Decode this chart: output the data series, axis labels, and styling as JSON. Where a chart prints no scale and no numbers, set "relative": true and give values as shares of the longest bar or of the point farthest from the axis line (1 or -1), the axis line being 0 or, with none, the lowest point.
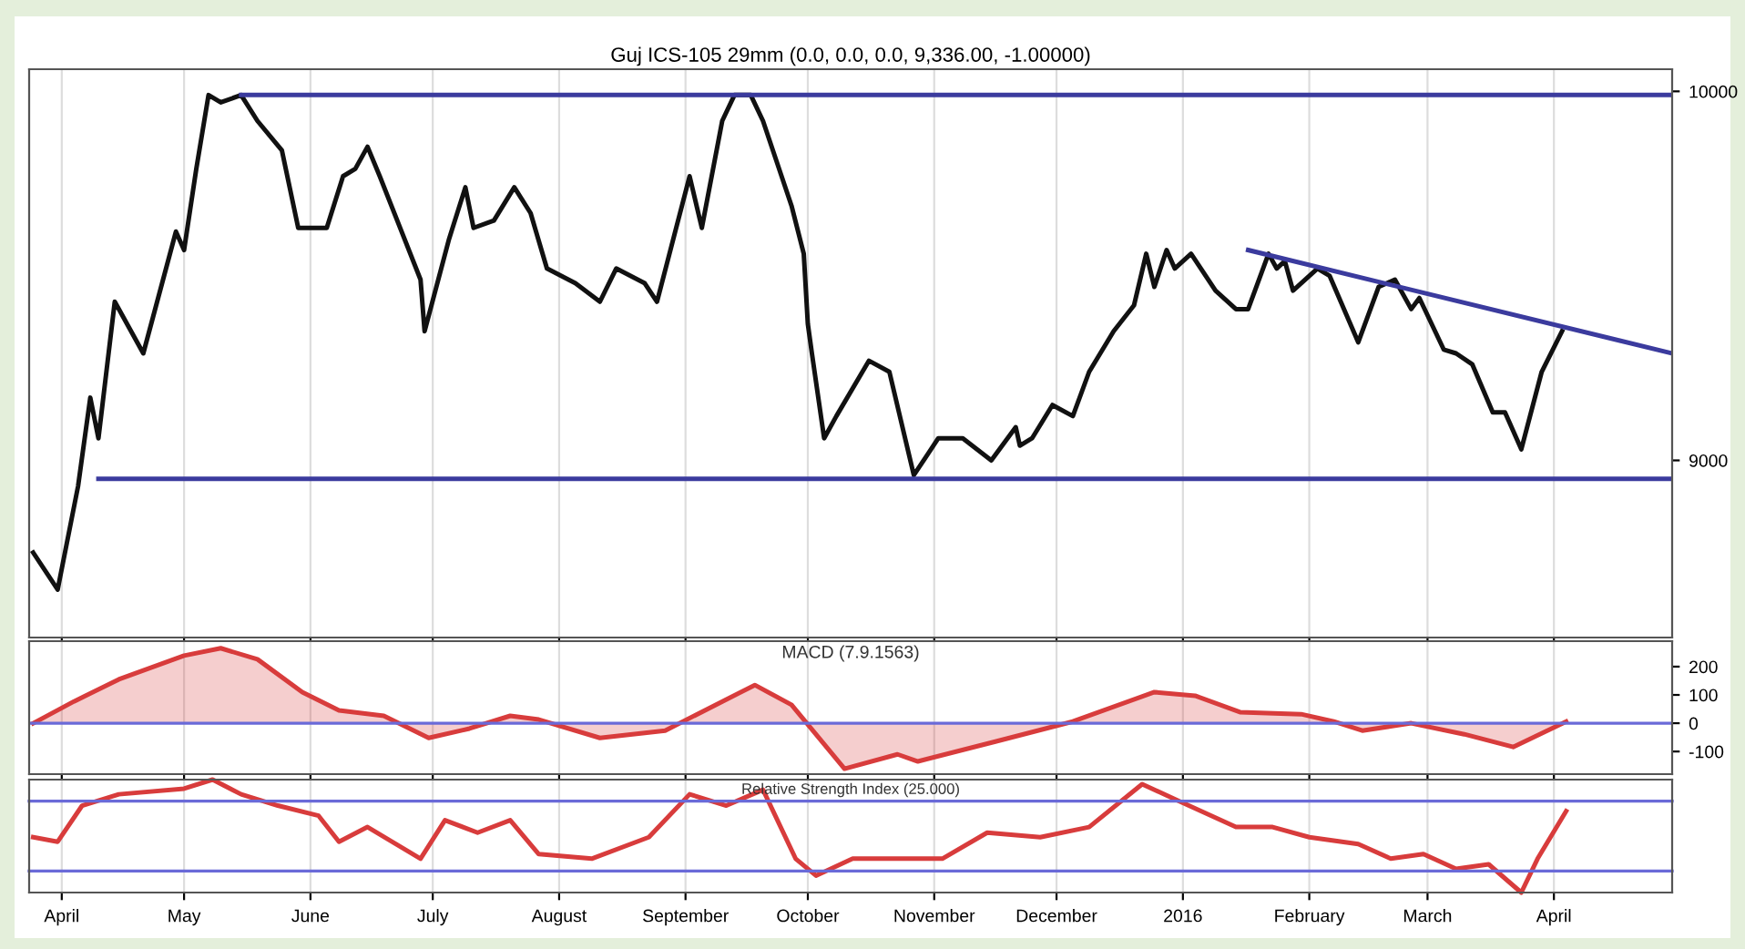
{
  "chart_data": [
    {
      "type": "line",
      "title": "Guj ICS-105 29mm (0.0, 0.0, 0.0, 9,336.00, -1.00000)",
      "tick_labels": "y",
      "grid": "x",
      "xlim": [
        "2015-03-24",
        "2016-04-30"
      ],
      "ylim": [
        8520,
        10060
      ],
      "yticks": [
        9000,
        10000
      ],
      "xticks": [
        {
          "value": "2015-04-01",
          "label": null
        },
        {
          "value": "2015-05-01",
          "label": null
        },
        {
          "value": "2015-06-01",
          "label": null
        },
        {
          "value": "2015-07-01",
          "label": null
        },
        {
          "value": "2015-08-01",
          "label": null
        },
        {
          "value": "2015-09-01",
          "label": null
        },
        {
          "value": "2015-10-01",
          "label": null
        },
        {
          "value": "2015-11-01",
          "label": null
        },
        {
          "value": "2015-12-01",
          "label": null
        },
        {
          "value": "2016-01-01",
          "label": null
        },
        {
          "value": "2016-02-01",
          "label": null
        },
        {
          "value": "2016-03-01",
          "label": null
        },
        {
          "value": "2016-04-01",
          "label": null
        }
      ],
      "series": [
        {
          "color": "#111111",
          "x": [
            "2015-03-25",
            "2015-03-31",
            "2015-04-05",
            "2015-04-08",
            "2015-04-10",
            "2015-04-14",
            "2015-04-21",
            "2015-04-29",
            "2015-05-01",
            "2015-05-04",
            "2015-05-07",
            "2015-05-10",
            "2015-05-15",
            "2015-05-19",
            "2015-05-25",
            "2015-05-29",
            "2015-06-05",
            "2015-06-09",
            "2015-06-12",
            "2015-06-15",
            "2015-06-18",
            "2015-06-28",
            "2015-06-29",
            "2015-07-05",
            "2015-07-09",
            "2015-07-11",
            "2015-07-16",
            "2015-07-21",
            "2015-07-25",
            "2015-07-29",
            "2015-08-05",
            "2015-08-11",
            "2015-08-15",
            "2015-08-22",
            "2015-08-25",
            "2015-09-02",
            "2015-09-05",
            "2015-09-10",
            "2015-09-13",
            "2015-09-17",
            "2015-09-20",
            "2015-09-27",
            "2015-09-30",
            "2015-10-01",
            "2015-10-02",
            "2015-10-05",
            "2015-10-08",
            "2015-10-16",
            "2015-10-21",
            "2015-10-27",
            "2015-11-02",
            "2015-11-08",
            "2015-11-15",
            "2015-11-21",
            "2015-11-22",
            "2015-11-25",
            "2015-11-30",
            "2015-12-05",
            "2015-12-09",
            "2015-12-15",
            "2015-12-20",
            "2015-12-23",
            "2015-12-25",
            "2015-12-28",
            "2015-12-30",
            "2016-01-03",
            "2016-01-09",
            "2016-01-14",
            "2016-01-17",
            "2016-01-22",
            "2016-01-24",
            "2016-01-26",
            "2016-01-28",
            "2016-02-03",
            "2016-02-06",
            "2016-02-13",
            "2016-02-18",
            "2016-02-22",
            "2016-02-26",
            "2016-02-28",
            "2016-03-05",
            "2016-03-08",
            "2016-03-12",
            "2016-03-17",
            "2016-03-20",
            "2016-03-24",
            "2016-03-29",
            "2016-04-03"
          ],
          "values": [
            8750,
            8650,
            8930,
            9170,
            9060,
            9430,
            9290,
            9620,
            9570,
            9790,
            9990,
            9970,
            9990,
            9920,
            9840,
            9630,
            9630,
            9770,
            9790,
            9850,
            9770,
            9490,
            9350,
            9600,
            9740,
            9630,
            9650,
            9740,
            9670,
            9520,
            9480,
            9430,
            9520,
            9480,
            9430,
            9770,
            9630,
            9920,
            9990,
            9990,
            9920,
            9690,
            9560,
            9370,
            9290,
            9060,
            9120,
            9270,
            9240,
            8960,
            9060,
            9060,
            9000,
            9090,
            9040,
            9060,
            9150,
            9120,
            9240,
            9350,
            9420,
            9560,
            9470,
            9570,
            9520,
            9560,
            9460,
            9410,
            9410,
            9560,
            9520,
            9540,
            9460,
            9520,
            9500,
            9320,
            9470,
            9490,
            9410,
            9440,
            9300,
            9290,
            9260,
            9130,
            9130,
            9030,
            9240,
            9350
          ]
        },
        {
          "color": "#3b3b9e",
          "x": [
            "2015-05-15",
            "2016-04-30"
          ],
          "values": [
            9990,
            9990
          ]
        },
        {
          "color": "#3b3b9e",
          "x": [
            "2015-04-10",
            "2016-04-30"
          ],
          "values": [
            8950,
            8950
          ]
        },
        {
          "color": "#3b3b9e",
          "x": [
            "2016-01-17",
            "2016-04-30"
          ],
          "values": [
            9570,
            9290
          ]
        }
      ]
    },
    {
      "type": "area",
      "title": "MACD (7.9.1563)",
      "tick_labels": "y",
      "grid": "x",
      "xlim": [
        "2015-03-24",
        "2016-04-30"
      ],
      "ylim": [
        -180,
        290
      ],
      "yticks": [
        -100,
        0,
        100,
        200
      ],
      "xticks": [
        {
          "value": "2015-04-01",
          "label": null
        },
        {
          "value": "2015-05-01",
          "label": null
        },
        {
          "value": "2015-06-01",
          "label": null
        },
        {
          "value": "2015-07-01",
          "label": null
        },
        {
          "value": "2015-08-01",
          "label": null
        },
        {
          "value": "2015-09-01",
          "label": null
        },
        {
          "value": "2015-10-01",
          "label": null
        },
        {
          "value": "2015-11-01",
          "label": null
        },
        {
          "value": "2015-12-01",
          "label": null
        },
        {
          "value": "2016-01-01",
          "label": null
        },
        {
          "value": "2016-02-01",
          "label": null
        },
        {
          "value": "2016-03-01",
          "label": null
        },
        {
          "value": "2016-04-01",
          "label": null
        }
      ],
      "ref_lines": [
        {
          "axis": "y",
          "value": 0,
          "color": "#6a6ad8"
        }
      ],
      "series": [
        {
          "color": "#d83c3c",
          "x": [
            "2015-03-25",
            "2015-04-04",
            "2015-04-15",
            "2015-05-01",
            "2015-05-10",
            "2015-05-19",
            "2015-05-30",
            "2015-06-08",
            "2015-06-19",
            "2015-06-30",
            "2015-07-10",
            "2015-07-20",
            "2015-07-27",
            "2015-08-11",
            "2015-08-27",
            "2015-09-18",
            "2015-09-27",
            "2015-10-10",
            "2015-10-23",
            "2015-10-28",
            "2015-11-16",
            "2015-12-05",
            "2015-12-25",
            "2016-01-04",
            "2016-01-15",
            "2016-01-30",
            "2016-02-07",
            "2016-02-14",
            "2016-02-26",
            "2016-03-10",
            "2016-03-22",
            "2016-04-04"
          ],
          "values": [
            0,
            77,
            155,
            239,
            265,
            226,
            110,
            45,
            26,
            -52,
            -19,
            26,
            13,
            -52,
            -26,
            135,
            65,
            -161,
            -110,
            -135,
            -65,
            6,
            110,
            97,
            39,
            32,
            6,
            -26,
            0,
            -39,
            -84,
            6
          ]
        }
      ]
    },
    {
      "type": "line",
      "title": "Relative Strength Index (25.000)",
      "relative": true,
      "tick_labels": "x",
      "grid": "x",
      "xlim": [
        "2015-03-24",
        "2016-04-30"
      ],
      "xticks": [
        {
          "value": "2015-04-01",
          "label": "April"
        },
        {
          "value": "2015-05-01",
          "label": "May"
        },
        {
          "value": "2015-06-01",
          "label": "June"
        },
        {
          "value": "2015-07-01",
          "label": "July"
        },
        {
          "value": "2015-08-01",
          "label": "August"
        },
        {
          "value": "2015-09-01",
          "label": "September"
        },
        {
          "value": "2015-10-01",
          "label": "October"
        },
        {
          "value": "2015-11-01",
          "label": "November"
        },
        {
          "value": "2015-12-01",
          "label": "December"
        },
        {
          "value": "2016-01-01",
          "label": "2016"
        },
        {
          "value": "2016-02-01",
          "label": "February"
        },
        {
          "value": "2016-03-01",
          "label": "March"
        },
        {
          "value": "2016-04-01",
          "label": "April"
        }
      ],
      "ref_lines": [
        {
          "axis": "y",
          "value": 0.81,
          "color": "#6a6ad8"
        },
        {
          "axis": "y",
          "value": 0.19,
          "color": "#6a6ad8"
        }
      ],
      "series": [
        {
          "color": "#d83c3c",
          "x": [
            "2015-03-25",
            "2015-03-31",
            "2015-04-06",
            "2015-04-15",
            "2015-05-01",
            "2015-05-08",
            "2015-05-15",
            "2015-05-24",
            "2015-06-03",
            "2015-06-08",
            "2015-06-15",
            "2015-06-28",
            "2015-07-04",
            "2015-07-12",
            "2015-07-20",
            "2015-07-27",
            "2015-08-09",
            "2015-08-23",
            "2015-09-02",
            "2015-09-11",
            "2015-09-20",
            "2015-09-28",
            "2015-10-03",
            "2015-10-12",
            "2015-10-25",
            "2015-11-03",
            "2015-11-14",
            "2015-11-27",
            "2015-12-09",
            "2015-12-22",
            "2015-12-31",
            "2016-01-14",
            "2016-01-23",
            "2016-02-01",
            "2016-02-13",
            "2016-02-21",
            "2016-02-29",
            "2016-03-08",
            "2016-03-16",
            "2016-03-24",
            "2016-03-28",
            "2016-04-04"
          ],
          "values": [
            0.49,
            0.45,
            0.77,
            0.87,
            0.92,
            1,
            0.87,
            0.77,
            0.68,
            0.45,
            0.58,
            0.3,
            0.64,
            0.53,
            0.64,
            0.34,
            0.3,
            0.49,
            0.87,
            0.77,
            0.91,
            0.3,
            0.15,
            0.3,
            0.3,
            0.3,
            0.53,
            0.49,
            0.58,
            0.96,
            0.81,
            0.58,
            0.58,
            0.49,
            0.43,
            0.3,
            0.34,
            0.21,
            0.25,
            0,
            0.3,
            0.72
          ]
        }
      ]
    }
  ]
}
